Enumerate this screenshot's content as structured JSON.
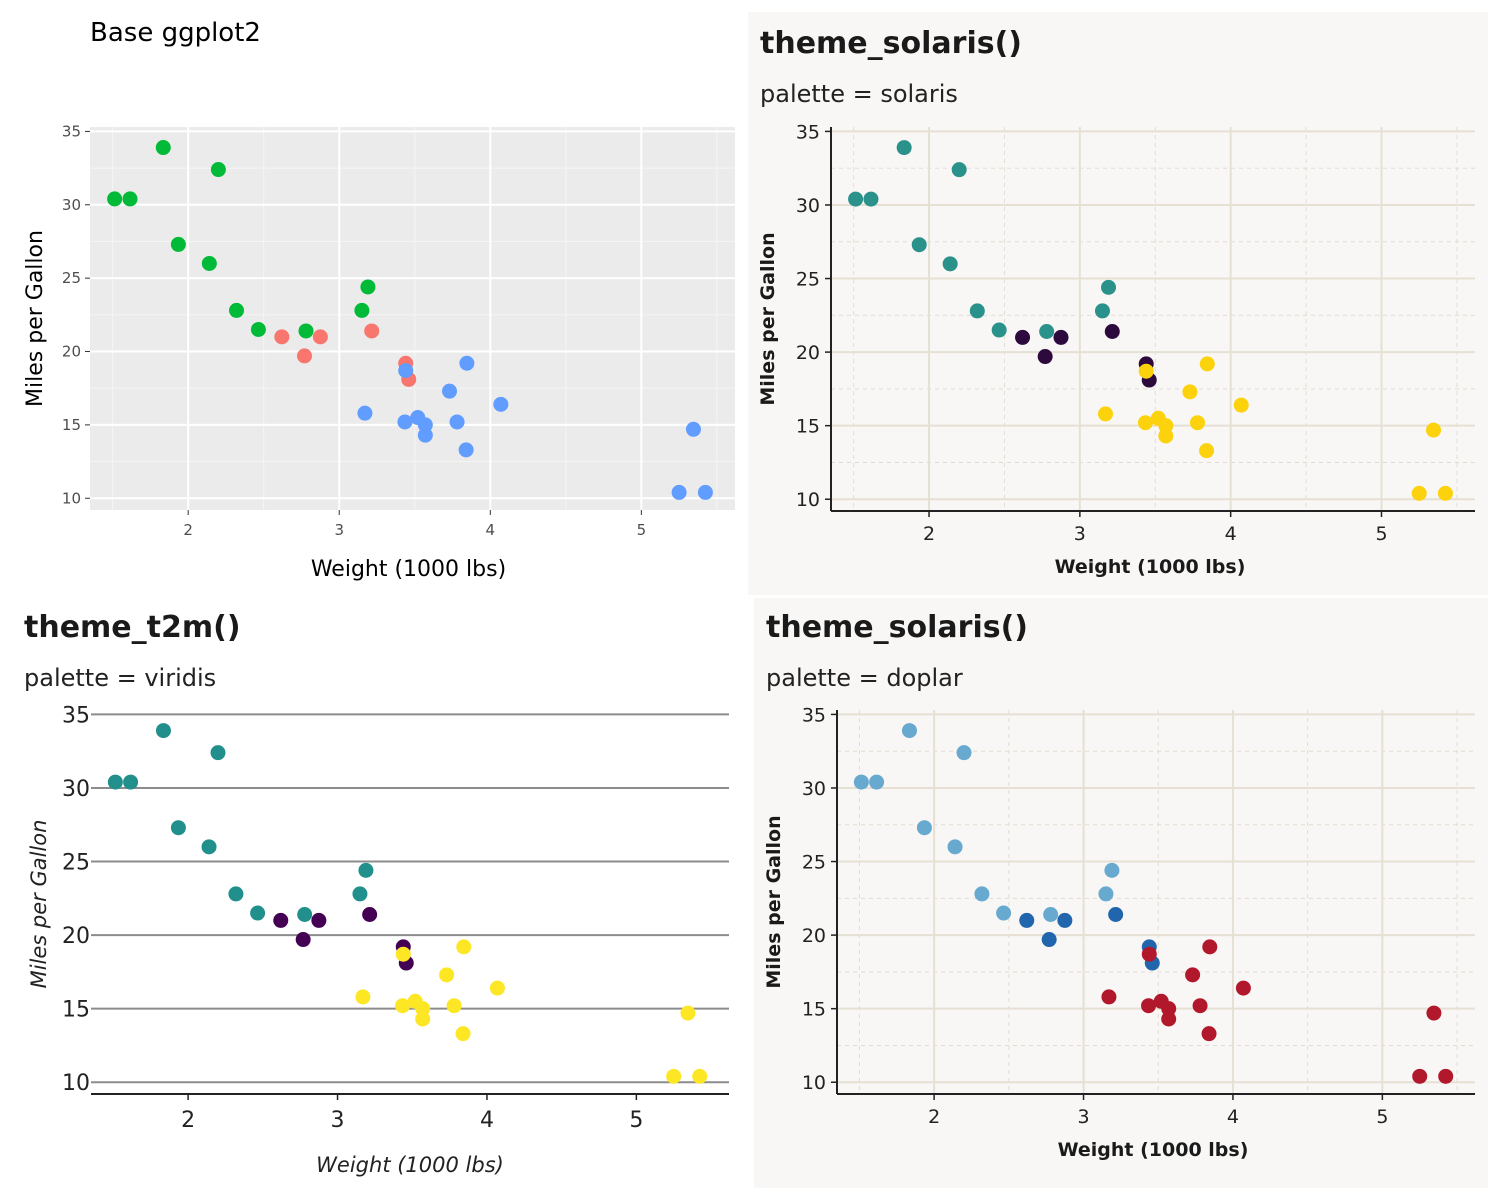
{
  "panels": [
    {
      "id": "p1",
      "title": "Base ggplot2",
      "subtitle": "",
      "theme": "base",
      "palette_colors": [
        "#f8766d",
        "#00ba38",
        "#619cff"
      ]
    },
    {
      "id": "p2",
      "title": "theme_solaris()",
      "subtitle": "palette = solaris",
      "theme": "solaris",
      "palette_colors": [
        "#2d0a3e",
        "#2a918b",
        "#fcd20c"
      ]
    },
    {
      "id": "p3",
      "title": "theme_t2m()",
      "subtitle": "palette = viridis",
      "theme": "t2m",
      "palette_colors": [
        "#440154",
        "#21908c",
        "#fde725"
      ]
    },
    {
      "id": "p4",
      "title": "theme_solaris()",
      "subtitle": "palette = doplar",
      "theme": "solaris",
      "palette_colors": [
        "#2166ac",
        "#67a9cf",
        "#b2182b"
      ]
    }
  ],
  "chart_data": {
    "type": "scatter",
    "xlabel": "Weight (1000 lbs)",
    "ylabel": "Miles per Gallon",
    "x_ticks": [
      2,
      3,
      4,
      5
    ],
    "y_ticks": [
      10,
      15,
      20,
      25,
      30,
      35
    ],
    "xlim": [
      1.35,
      5.62
    ],
    "ylim": [
      9.2,
      35.3
    ],
    "series": [
      {
        "x": [
          2.62,
          2.875,
          2.77,
          3.215,
          3.44,
          3.46
        ],
        "y": [
          21.0,
          21.0,
          19.7,
          21.4,
          19.2,
          18.1
        ]
      },
      {
        "x": [
          2.32,
          3.19,
          3.15,
          2.2,
          1.615,
          1.835,
          2.465,
          1.935,
          2.14,
          1.513,
          2.78
        ],
        "y": [
          22.8,
          24.4,
          22.8,
          32.4,
          30.4,
          33.9,
          21.5,
          27.3,
          26.0,
          30.4,
          21.4
        ]
      },
      {
        "x": [
          3.44,
          3.57,
          4.07,
          3.73,
          3.78,
          5.25,
          5.424,
          5.345,
          3.52,
          3.435,
          3.84,
          3.845,
          3.17,
          3.57
        ],
        "y": [
          18.7,
          14.3,
          16.4,
          17.3,
          15.2,
          10.4,
          10.4,
          14.7,
          15.5,
          15.2,
          13.3,
          19.2,
          15.8,
          15.0
        ]
      }
    ]
  }
}
